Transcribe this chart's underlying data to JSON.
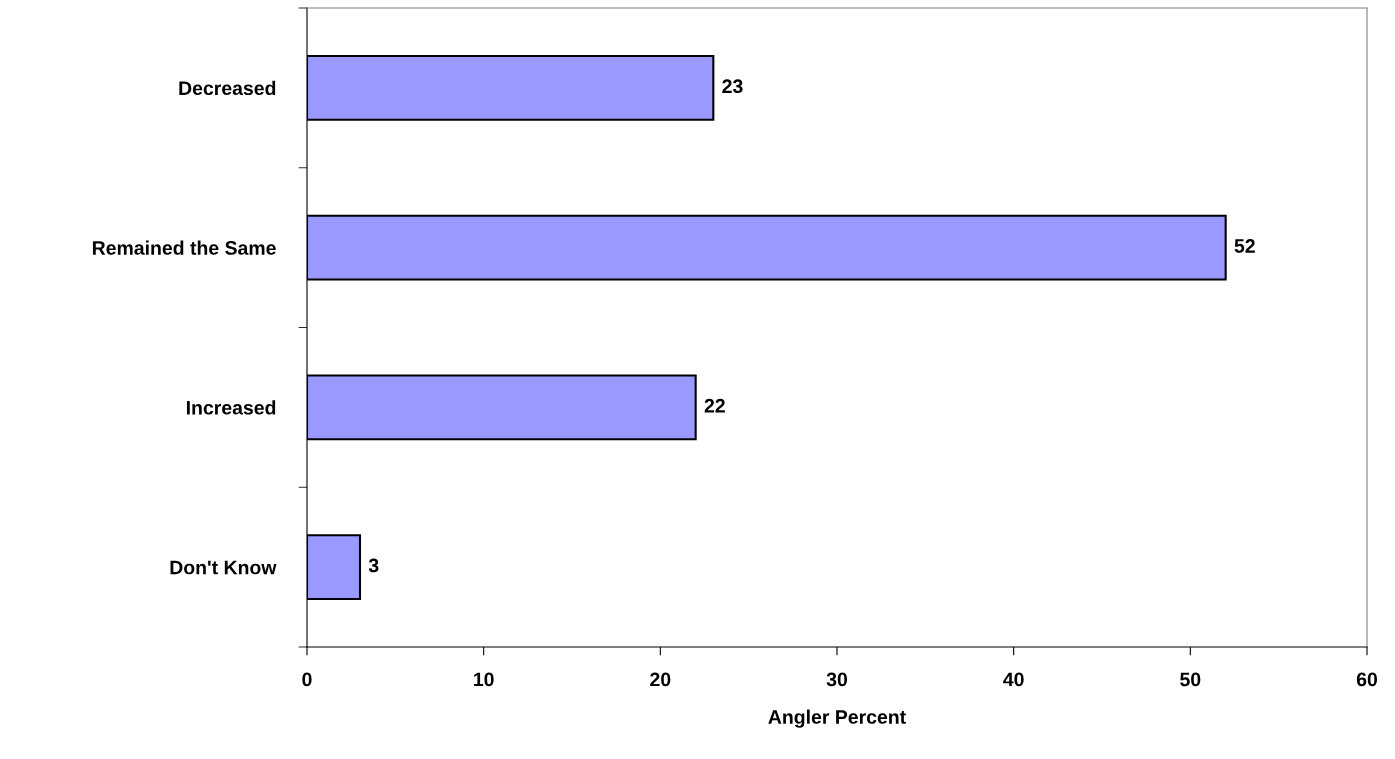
{
  "chart_data": {
    "type": "bar",
    "orientation": "horizontal",
    "xlabel": "Angler Percent",
    "categories": [
      "Decreased",
      "Remained the Same",
      "Increased",
      "Don't Know"
    ],
    "values": [
      23,
      52,
      22,
      3
    ],
    "color": "#9999ff",
    "xlim": [
      0,
      60
    ],
    "xticks": [
      0,
      10,
      20,
      30,
      40,
      50,
      60
    ],
    "data_labels": true,
    "grid": false,
    "legend": false
  }
}
